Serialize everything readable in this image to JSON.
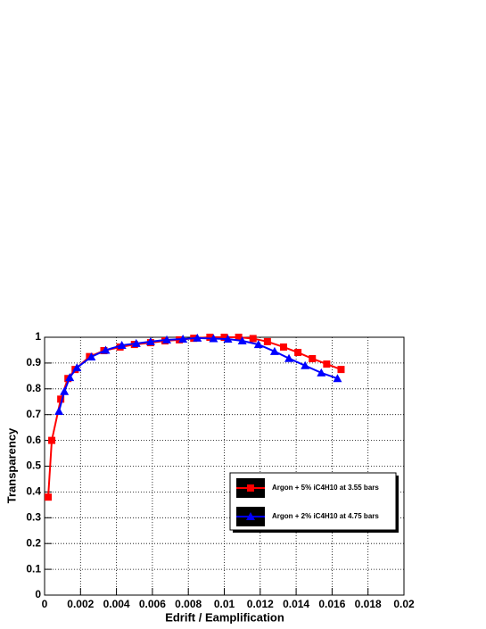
{
  "chart_data": {
    "type": "line",
    "x_label": "Edrift / Eamplification",
    "y_label": "Transparency",
    "xlim": [
      0,
      0.02
    ],
    "ylim": [
      0,
      1
    ],
    "xticks": [
      0,
      0.002,
      0.004,
      0.006,
      0.008,
      0.01,
      0.012,
      0.014,
      0.016,
      0.018,
      0.02
    ],
    "yticks": [
      0,
      0.1,
      0.2,
      0.3,
      0.4,
      0.5,
      0.6,
      0.7,
      0.8,
      0.9,
      1
    ],
    "grid": true,
    "legend": "lower-right",
    "series": [
      {
        "name": "Argon + 5% iC4H10 at 3.55 bars",
        "color": "#ff0000",
        "marker": "square",
        "x": [
          0.0002,
          0.0004,
          0.0009,
          0.0013,
          0.0017,
          0.0025,
          0.0033,
          0.0042,
          0.005,
          0.0059,
          0.0067,
          0.0075,
          0.0083,
          0.0092,
          0.01,
          0.0108,
          0.0116,
          0.0124,
          0.0133,
          0.0141,
          0.0149,
          0.0157,
          0.0165
        ],
        "values": [
          0.38,
          0.6,
          0.76,
          0.84,
          0.875,
          0.925,
          0.948,
          0.962,
          0.972,
          0.979,
          0.986,
          0.99,
          0.996,
          1.0,
          1.0,
          1.0,
          0.995,
          0.983,
          0.962,
          0.941,
          0.917,
          0.896,
          0.875
        ]
      },
      {
        "name": "Argon + 2% iC4H10 at 4.75 bars",
        "color": "#0000ff",
        "marker": "triangle",
        "x": [
          0.0008,
          0.0011,
          0.0014,
          0.0018,
          0.0026,
          0.0034,
          0.0043,
          0.0051,
          0.0059,
          0.0068,
          0.0077,
          0.0085,
          0.0094,
          0.0102,
          0.011,
          0.0119,
          0.0128,
          0.0136,
          0.0145,
          0.0154,
          0.0163
        ],
        "values": [
          0.713,
          0.79,
          0.844,
          0.882,
          0.924,
          0.95,
          0.969,
          0.976,
          0.983,
          0.99,
          0.993,
          0.997,
          0.995,
          0.993,
          0.986,
          0.972,
          0.945,
          0.918,
          0.89,
          0.862,
          0.84
        ]
      }
    ]
  }
}
